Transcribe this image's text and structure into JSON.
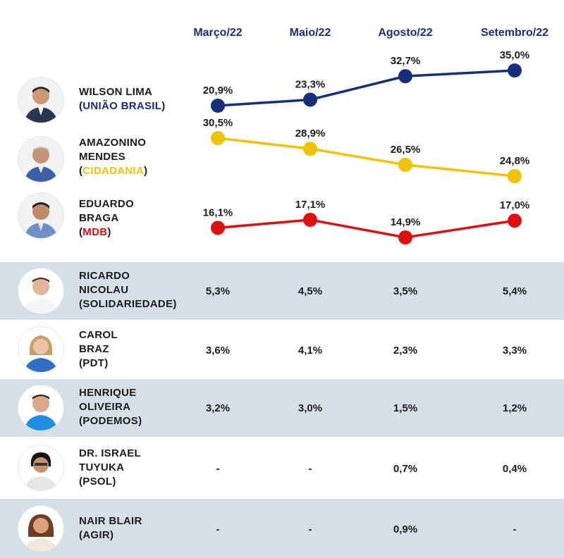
{
  "columns": [
    "Março/22",
    "Maio/22",
    "Agosto/22",
    "Setembro/22"
  ],
  "colors": {
    "uniao": "#15307a",
    "cidadania": "#f0c300",
    "mdb": "#e01010",
    "header": "#1a2f78",
    "band": "#d5dfe6"
  },
  "chart_data": {
    "type": "line",
    "x": [
      "Março/22",
      "Maio/22",
      "Agosto/22",
      "Setembro/22"
    ],
    "series": [
      {
        "name": "WILSON LIMA (UNIÃO BRASIL)",
        "values": [
          20.9,
          23.3,
          32.7,
          35.0
        ],
        "labels": [
          "20,9%",
          "23,3%",
          "32,7%",
          "35,0%"
        ],
        "color": "#15307a"
      },
      {
        "name": "AMAZONINO MENDES (CIDADANIA)",
        "values": [
          30.5,
          28.9,
          26.5,
          24.8
        ],
        "labels": [
          "30,5%",
          "28,9%",
          "26,5%",
          "24,8%"
        ],
        "color": "#f0c300"
      },
      {
        "name": "EDUARDO BRAGA (MDB)",
        "values": [
          16.1,
          17.1,
          14.9,
          17.0
        ],
        "labels": [
          "16,1%",
          "17,1%",
          "14,9%",
          "17,0%"
        ],
        "color": "#e01010"
      }
    ]
  },
  "chart_candidates": [
    {
      "name_lines": [
        "WILSON LIMA"
      ],
      "party": "UNIÃO BRASIL",
      "party_color": "#15307a"
    },
    {
      "name_lines": [
        "AMAZONINO",
        "MENDES"
      ],
      "party": "CIDADANIA",
      "party_color": "#f0c300"
    },
    {
      "name_lines": [
        "EDUARDO",
        "BRAGA"
      ],
      "party": "MDB",
      "party_color": "#e01010"
    }
  ],
  "table_rows": [
    {
      "name_lines": [
        "RICARDO",
        "NICOLAU"
      ],
      "party": "SOLIDARIEDADE",
      "values": [
        "5,3%",
        "4,5%",
        "3,5%",
        "5,4%"
      ]
    },
    {
      "name_lines": [
        "CAROL",
        "BRAZ"
      ],
      "party": "PDT",
      "values": [
        "3,6%",
        "4,1%",
        "2,3%",
        "3,3%"
      ]
    },
    {
      "name_lines": [
        "HENRIQUE",
        "OLIVEIRA"
      ],
      "party": "PODEMOS",
      "values": [
        "3,2%",
        "3,0%",
        "1,5%",
        "1,2%"
      ]
    },
    {
      "name_lines": [
        "DR. ISRAEL",
        "TUYUKA"
      ],
      "party": "PSOL",
      "values": [
        "-",
        "-",
        "0,7%",
        "0,4%"
      ]
    },
    {
      "name_lines": [
        "NAIR BLAIR"
      ],
      "party": "AGIR",
      "values": [
        "-",
        "-",
        "0,9%",
        "-"
      ]
    }
  ]
}
